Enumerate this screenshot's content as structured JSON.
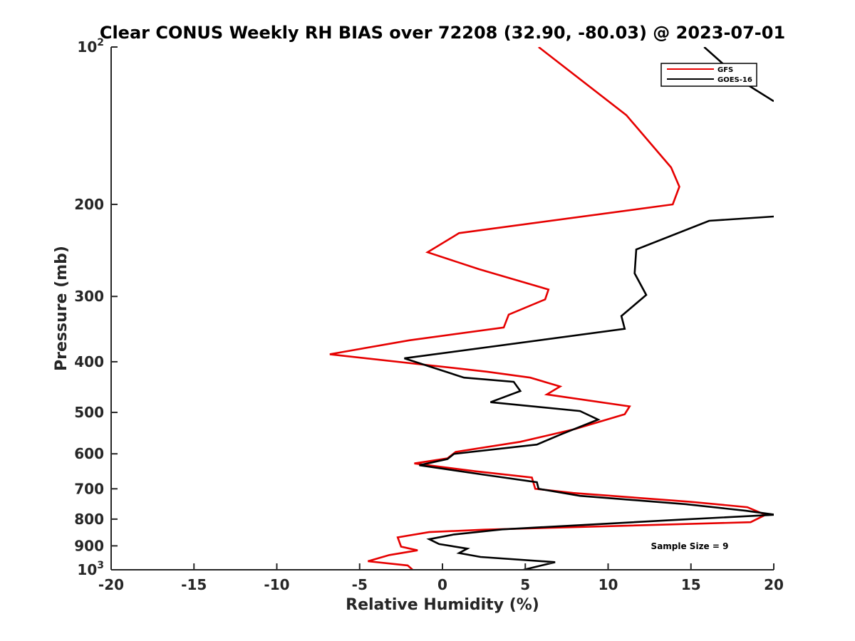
{
  "chart_data": {
    "type": "line",
    "title": "Clear CONUS Weekly RH BIAS over 72208 (32.90, -80.03) @ 2023-07-01",
    "xlabel": "Relative Humidity (%)",
    "ylabel": "Pressure (mb)",
    "xlim": [
      -20,
      20
    ],
    "ylim": [
      1000,
      100
    ],
    "y_scale": "log",
    "y_reversed": true,
    "grid": false,
    "legend_position": "top-right",
    "x_ticks": [
      "-20",
      "-15",
      "-10",
      "-5",
      "0",
      "5",
      "10",
      "15",
      "20"
    ],
    "y_ticks": [
      {
        "value": 100,
        "base": "10",
        "exp": "2"
      },
      {
        "value": 200,
        "label": "200"
      },
      {
        "value": 300,
        "label": "300"
      },
      {
        "value": 400,
        "label": "400"
      },
      {
        "value": 500,
        "label": "500"
      },
      {
        "value": 600,
        "label": "600"
      },
      {
        "value": 700,
        "label": "700"
      },
      {
        "value": 800,
        "label": "800"
      },
      {
        "value": 900,
        "label": "900"
      },
      {
        "value": 1000,
        "base": "10",
        "exp": "3"
      }
    ],
    "annotation": "Sample Size = 9",
    "series": [
      {
        "name": "GFS",
        "color": "#e60000",
        "points": [
          [
            5.8,
            100
          ],
          [
            11.1,
            135
          ],
          [
            13.8,
            170
          ],
          [
            14.3,
            185
          ],
          [
            13.9,
            200
          ],
          [
            1.0,
            227
          ],
          [
            -0.9,
            247
          ],
          [
            2.2,
            266
          ],
          [
            6.4,
            291
          ],
          [
            6.2,
            304
          ],
          [
            4.0,
            325
          ],
          [
            3.7,
            344
          ],
          [
            -2.0,
            364
          ],
          [
            -6.8,
            387
          ],
          [
            2.7,
            418
          ],
          [
            5.3,
            429
          ],
          [
            7.1,
            446
          ],
          [
            6.3,
            462
          ],
          [
            11.3,
            487
          ],
          [
            11.0,
            504
          ],
          [
            8.0,
            538
          ],
          [
            4.7,
            569
          ],
          [
            0.8,
            595
          ],
          [
            0.3,
            612
          ],
          [
            -1.7,
            626
          ],
          [
            2.0,
            648
          ],
          [
            5.4,
            666
          ],
          [
            5.6,
            700
          ],
          [
            7.9,
            713
          ],
          [
            14.9,
            741
          ],
          [
            18.4,
            759
          ],
          [
            19.5,
            785
          ],
          [
            18.6,
            811
          ],
          [
            2.5,
            838
          ],
          [
            -0.8,
            847
          ],
          [
            -2.7,
            867
          ],
          [
            -2.5,
            903
          ],
          [
            -1.5,
            918
          ],
          [
            -3.2,
            937
          ],
          [
            -4.5,
            963
          ],
          [
            -2.1,
            981
          ],
          [
            -1.8,
            1000
          ]
        ]
      },
      {
        "name": "GOES-16",
        "color": "#000000",
        "points": [
          [
            15.8,
            100
          ],
          [
            18.2,
            117
          ],
          [
            20.0,
            127
          ],
          [
            null,
            null
          ],
          [
            20.0,
            211
          ],
          [
            16.1,
            215
          ],
          [
            11.7,
            244
          ],
          [
            11.6,
            271
          ],
          [
            12.3,
            298
          ],
          [
            10.8,
            327
          ],
          [
            11.0,
            346
          ],
          [
            -2.3,
            394
          ],
          [
            1.3,
            429
          ],
          [
            4.3,
            437
          ],
          [
            4.7,
            455
          ],
          [
            2.9,
            478
          ],
          [
            8.3,
            497
          ],
          [
            9.4,
            516
          ],
          [
            7.2,
            550
          ],
          [
            5.7,
            576
          ],
          [
            0.7,
            600
          ],
          [
            0.3,
            614
          ],
          [
            -1.4,
            631
          ],
          [
            2.8,
            660
          ],
          [
            5.7,
            680
          ],
          [
            5.8,
            700
          ],
          [
            8.3,
            722
          ],
          [
            14.7,
            749
          ],
          [
            18.3,
            771
          ],
          [
            20.0,
            784
          ],
          [
            20.0,
            785
          ],
          [
            14.6,
            801
          ],
          [
            3.6,
            837
          ],
          [
            0.7,
            856
          ],
          [
            -0.8,
            874
          ],
          [
            -0.2,
            893
          ],
          [
            1.5,
            911
          ],
          [
            1.0,
            929
          ],
          [
            2.3,
            945
          ],
          [
            6.8,
            967
          ],
          [
            4.9,
            1000
          ]
        ]
      }
    ]
  }
}
